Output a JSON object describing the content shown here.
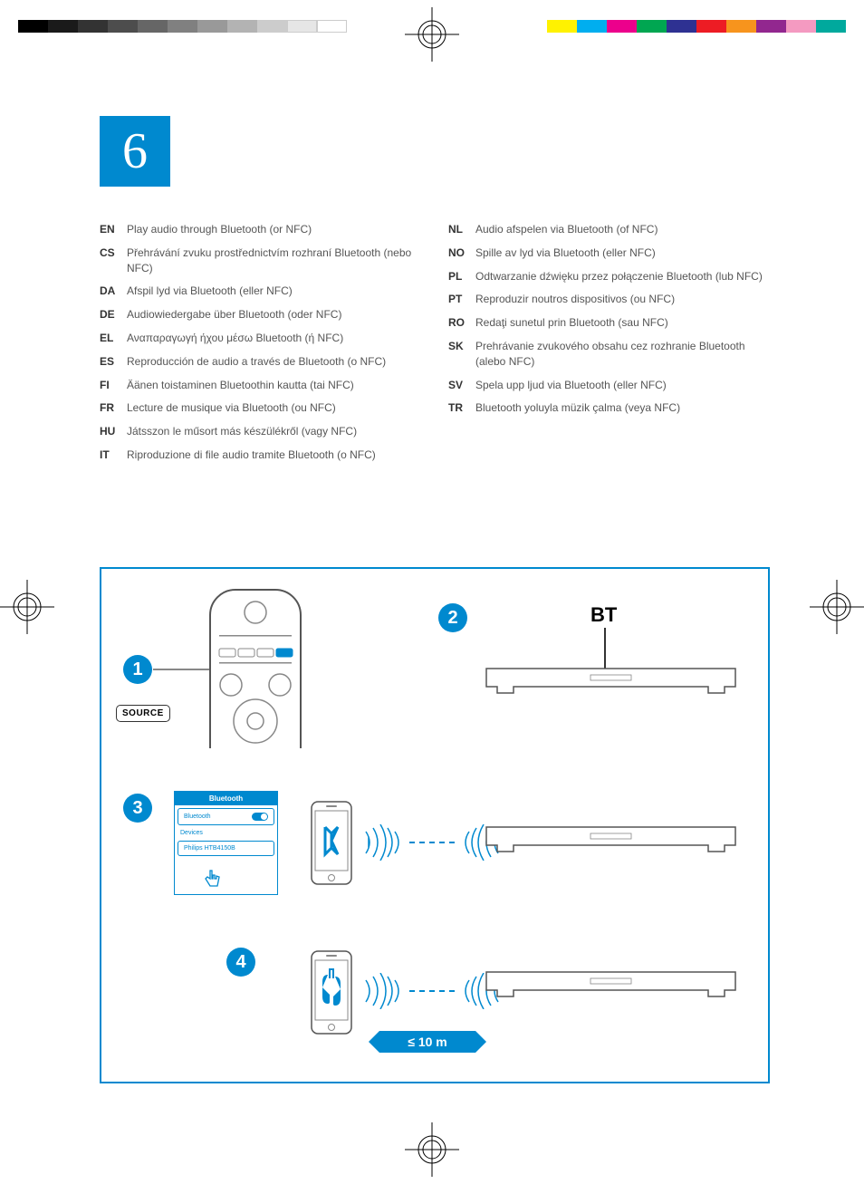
{
  "section_number": "6",
  "print_marks": {
    "grayscale_bar": [
      "#000000",
      "#1a1a1a",
      "#333333",
      "#4d4d4d",
      "#666666",
      "#808080",
      "#999999",
      "#b3b3b3",
      "#cccccc",
      "#e6e6e6",
      "#ffffff"
    ],
    "color_bar": [
      "#fff200",
      "#00aeef",
      "#ec008c",
      "#00a651",
      "#2e3192",
      "#ed1c24",
      "#f7941d",
      "#92278f",
      "#f49ac1",
      "#00a99d"
    ]
  },
  "languages_left": [
    {
      "code": "EN",
      "text": "Play audio through Bluetooth (or NFC)"
    },
    {
      "code": "CS",
      "text": "Přehrávání zvuku prostřednictvím rozhraní Bluetooth (nebo NFC)"
    },
    {
      "code": "DA",
      "text": "Afspil lyd via Bluetooth (eller NFC)"
    },
    {
      "code": "DE",
      "text": "Audiowiedergabe über Bluetooth (oder NFC)"
    },
    {
      "code": "EL",
      "text": "Αναπαραγωγή ήχου μέσω Bluetooth (ή NFC)"
    },
    {
      "code": "ES",
      "text": "Reproducción de audio a través de Bluetooth (o NFC)"
    },
    {
      "code": "FI",
      "text": "Äänen toistaminen Bluetoothin kautta (tai NFC)"
    },
    {
      "code": "FR",
      "text": "Lecture de musique via Bluetooth (ou NFC)"
    },
    {
      "code": "HU",
      "text": "Játsszon le műsort más készülékről (vagy NFC)"
    },
    {
      "code": "IT",
      "text": "Riproduzione di file audio tramite Bluetooth (o NFC)"
    }
  ],
  "languages_right": [
    {
      "code": "NL",
      "text": "Audio afspelen via Bluetooth (of NFC)"
    },
    {
      "code": "NO",
      "text": "Spille av lyd via Bluetooth (eller NFC)"
    },
    {
      "code": "PL",
      "text": "Odtwarzanie dźwięku przez połączenie Bluetooth (lub NFC)"
    },
    {
      "code": "PT",
      "text": "Reproduzir noutros dispositivos (ou NFC)"
    },
    {
      "code": "RO",
      "text": "Redaţi sunetul prin Bluetooth (sau NFC)"
    },
    {
      "code": "SK",
      "text": "Prehrávanie zvukového obsahu cez rozhranie Bluetooth (alebo NFC)"
    },
    {
      "code": "SV",
      "text": "Spela upp ljud via Bluetooth (eller NFC)"
    },
    {
      "code": "TR",
      "text": "Bluetooth yoluyla müzik çalma (veya NFC)"
    }
  ],
  "diagram": {
    "accent_color": "#0089cf",
    "steps": {
      "s1": {
        "num": "1",
        "button_label": "SOURCE"
      },
      "s2": {
        "num": "2",
        "label": "BT"
      },
      "s3": {
        "num": "3",
        "dialog_header": "Bluetooth",
        "dialog_toggle_label": "Bluetooth",
        "dialog_section": "Devices",
        "dialog_device": "Philips HTB4150B"
      },
      "s4": {
        "num": "4",
        "distance_label": "≤ 10 m"
      }
    }
  }
}
